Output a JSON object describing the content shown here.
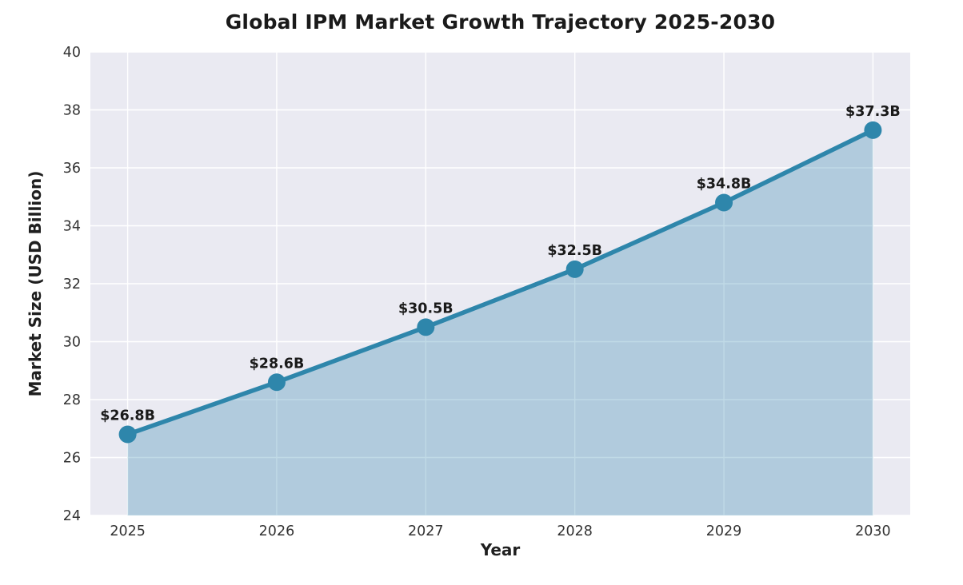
{
  "chart_data": {
    "type": "line",
    "title": "Global IPM Market Growth Trajectory 2025-2030",
    "xlabel": "Year",
    "ylabel": "Market Size (USD Billion)",
    "categories": [
      2025,
      2026,
      2027,
      2028,
      2029,
      2030
    ],
    "values": [
      26.8,
      28.6,
      30.5,
      32.5,
      34.8,
      37.3
    ],
    "point_labels": [
      "$26.8B",
      "$28.6B",
      "$30.5B",
      "$32.5B",
      "$34.8B",
      "$37.3B"
    ],
    "ylim": [
      24,
      40
    ],
    "yticks": [
      24,
      26,
      28,
      30,
      32,
      34,
      36,
      38,
      40
    ],
    "xlim": [
      2024.75,
      2030.25
    ],
    "grid": true,
    "legend": "none",
    "area_fill": true,
    "style": {
      "line_color": "#2E86AB",
      "marker_color": "#2E86AB",
      "area_fill_color": "#2E86AB",
      "area_fill_opacity": 0.3,
      "plot_background": "#EAEAF2",
      "gridline_color": "#FFFFFF",
      "figure_background": "#FFFFFF",
      "title_color": "#1A1A1A",
      "tick_label_color": "#333333",
      "annotation_color": "#1A1A1A"
    }
  }
}
